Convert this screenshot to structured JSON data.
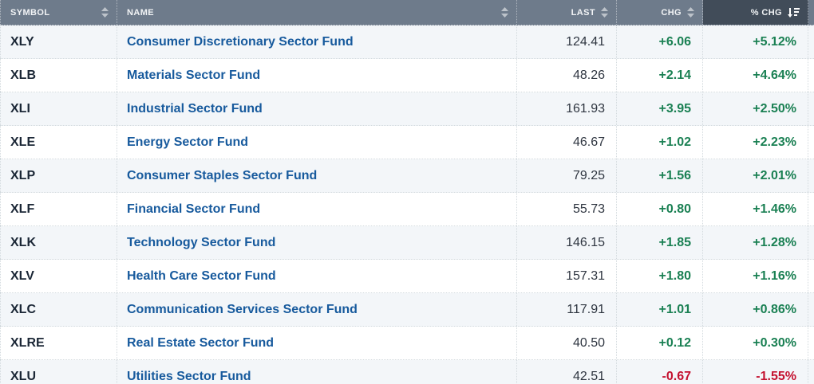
{
  "table": {
    "columns": [
      {
        "label": "SYMBOL",
        "align": "left",
        "sorted": false,
        "sort_icon": "sort-both-icon"
      },
      {
        "label": "NAME",
        "align": "left",
        "sorted": false,
        "sort_icon": "sort-both-icon"
      },
      {
        "label": "LAST",
        "align": "right",
        "sorted": false,
        "sort_icon": "sort-both-icon"
      },
      {
        "label": "CHG",
        "align": "right",
        "sorted": false,
        "sort_icon": "sort-both-icon"
      },
      {
        "label": "% CHG",
        "align": "right",
        "sorted": true,
        "sort_direction": "desc",
        "sort_icon": "sort-descending-icon"
      }
    ],
    "rows": [
      {
        "symbol": "XLY",
        "name": "Consumer Discretionary Sector Fund",
        "last": "124.41",
        "chg": "+6.06",
        "pct_chg": "+5.12%",
        "direction": "up"
      },
      {
        "symbol": "XLB",
        "name": "Materials Sector Fund",
        "last": "48.26",
        "chg": "+2.14",
        "pct_chg": "+4.64%",
        "direction": "up"
      },
      {
        "symbol": "XLI",
        "name": "Industrial Sector Fund",
        "last": "161.93",
        "chg": "+3.95",
        "pct_chg": "+2.50%",
        "direction": "up"
      },
      {
        "symbol": "XLE",
        "name": "Energy Sector Fund",
        "last": "46.67",
        "chg": "+1.02",
        "pct_chg": "+2.23%",
        "direction": "up"
      },
      {
        "symbol": "XLP",
        "name": "Consumer Staples Sector Fund",
        "last": "79.25",
        "chg": "+1.56",
        "pct_chg": "+2.01%",
        "direction": "up"
      },
      {
        "symbol": "XLF",
        "name": "Financial Sector Fund",
        "last": "55.73",
        "chg": "+0.80",
        "pct_chg": "+1.46%",
        "direction": "up"
      },
      {
        "symbol": "XLK",
        "name": "Technology Sector Fund",
        "last": "146.15",
        "chg": "+1.85",
        "pct_chg": "+1.28%",
        "direction": "up"
      },
      {
        "symbol": "XLV",
        "name": "Health Care Sector Fund",
        "last": "157.31",
        "chg": "+1.80",
        "pct_chg": "+1.16%",
        "direction": "up"
      },
      {
        "symbol": "XLC",
        "name": "Communication Services Sector Fund",
        "last": "117.91",
        "chg": "+1.01",
        "pct_chg": "+0.86%",
        "direction": "up"
      },
      {
        "symbol": "XLRE",
        "name": "Real Estate Sector Fund",
        "last": "40.50",
        "chg": "+0.12",
        "pct_chg": "+0.30%",
        "direction": "up"
      },
      {
        "symbol": "XLU",
        "name": "Utilities Sector Fund",
        "last": "42.51",
        "chg": "-0.67",
        "pct_chg": "-1.55%",
        "direction": "down"
      }
    ]
  },
  "colors": {
    "header_bg": "#6e7b8b",
    "sorted_header_bg": "#414c59",
    "row_alt_bg": "#f3f6f9",
    "link_blue": "#175a9d",
    "up_green": "#1a8053",
    "down_red": "#c41230"
  }
}
